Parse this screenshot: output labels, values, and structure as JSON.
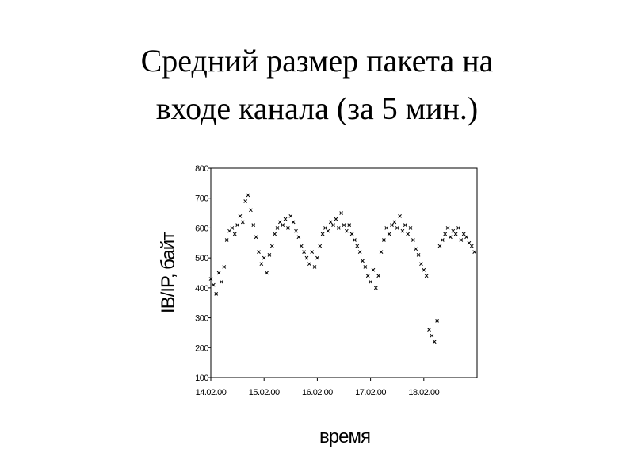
{
  "chart_data": {
    "type": "scatter",
    "title": "Средний размер пакета на входе канала (за 5 мин.)",
    "title_lines": [
      "Средний размер пакета на",
      "входе канала (за 5 мин.)"
    ],
    "xlabel": "время",
    "ylabel": "IB/IP, байт",
    "color": "#000000",
    "marker": "x",
    "grid": false,
    "xlim": [
      14,
      19
    ],
    "ylim": [
      100,
      800
    ],
    "xticks": [
      {
        "value": 14,
        "label": "14.02.00"
      },
      {
        "value": 15,
        "label": "15.02.00"
      },
      {
        "value": 16,
        "label": "16.02.00"
      },
      {
        "value": 17,
        "label": "17.02.00"
      },
      {
        "value": 18,
        "label": "18.02.00"
      }
    ],
    "yticks": [
      100,
      200,
      300,
      400,
      500,
      600,
      700,
      800
    ],
    "x": [
      14.0,
      14.05,
      14.1,
      14.15,
      14.2,
      14.25,
      14.3,
      14.35,
      14.4,
      14.45,
      14.5,
      14.55,
      14.6,
      14.65,
      14.7,
      14.75,
      14.8,
      14.85,
      14.9,
      14.95,
      15.0,
      15.05,
      15.1,
      15.15,
      15.2,
      15.25,
      15.3,
      15.35,
      15.4,
      15.45,
      15.5,
      15.55,
      15.6,
      15.65,
      15.7,
      15.75,
      15.8,
      15.85,
      15.9,
      15.95,
      16.0,
      16.05,
      16.1,
      16.15,
      16.2,
      16.25,
      16.3,
      16.35,
      16.4,
      16.45,
      16.5,
      16.55,
      16.6,
      16.65,
      16.7,
      16.75,
      16.8,
      16.85,
      16.9,
      16.95,
      17.0,
      17.05,
      17.1,
      17.15,
      17.2,
      17.25,
      17.3,
      17.35,
      17.4,
      17.45,
      17.5,
      17.55,
      17.6,
      17.65,
      17.7,
      17.75,
      17.8,
      17.85,
      17.9,
      17.95,
      18.0,
      18.05,
      18.1,
      18.15,
      18.2,
      18.25,
      18.3,
      18.35,
      18.4,
      18.45,
      18.5,
      18.55,
      18.6,
      18.65,
      18.7,
      18.75,
      18.8,
      18.85,
      18.9,
      18.95
    ],
    "values": [
      430,
      410,
      380,
      450,
      420,
      470,
      560,
      590,
      600,
      580,
      610,
      640,
      620,
      690,
      710,
      660,
      610,
      570,
      520,
      480,
      500,
      450,
      510,
      540,
      580,
      600,
      620,
      610,
      630,
      600,
      640,
      620,
      590,
      570,
      540,
      520,
      500,
      480,
      520,
      470,
      500,
      540,
      580,
      600,
      590,
      620,
      610,
      630,
      600,
      650,
      610,
      590,
      610,
      580,
      560,
      540,
      520,
      490,
      470,
      440,
      420,
      460,
      400,
      440,
      520,
      560,
      600,
      580,
      610,
      620,
      600,
      640,
      590,
      610,
      580,
      600,
      560,
      530,
      510,
      480,
      460,
      440,
      260,
      240,
      220,
      290,
      540,
      560,
      580,
      600,
      570,
      590,
      580,
      600,
      560,
      580,
      570,
      550,
      540,
      520
    ]
  }
}
